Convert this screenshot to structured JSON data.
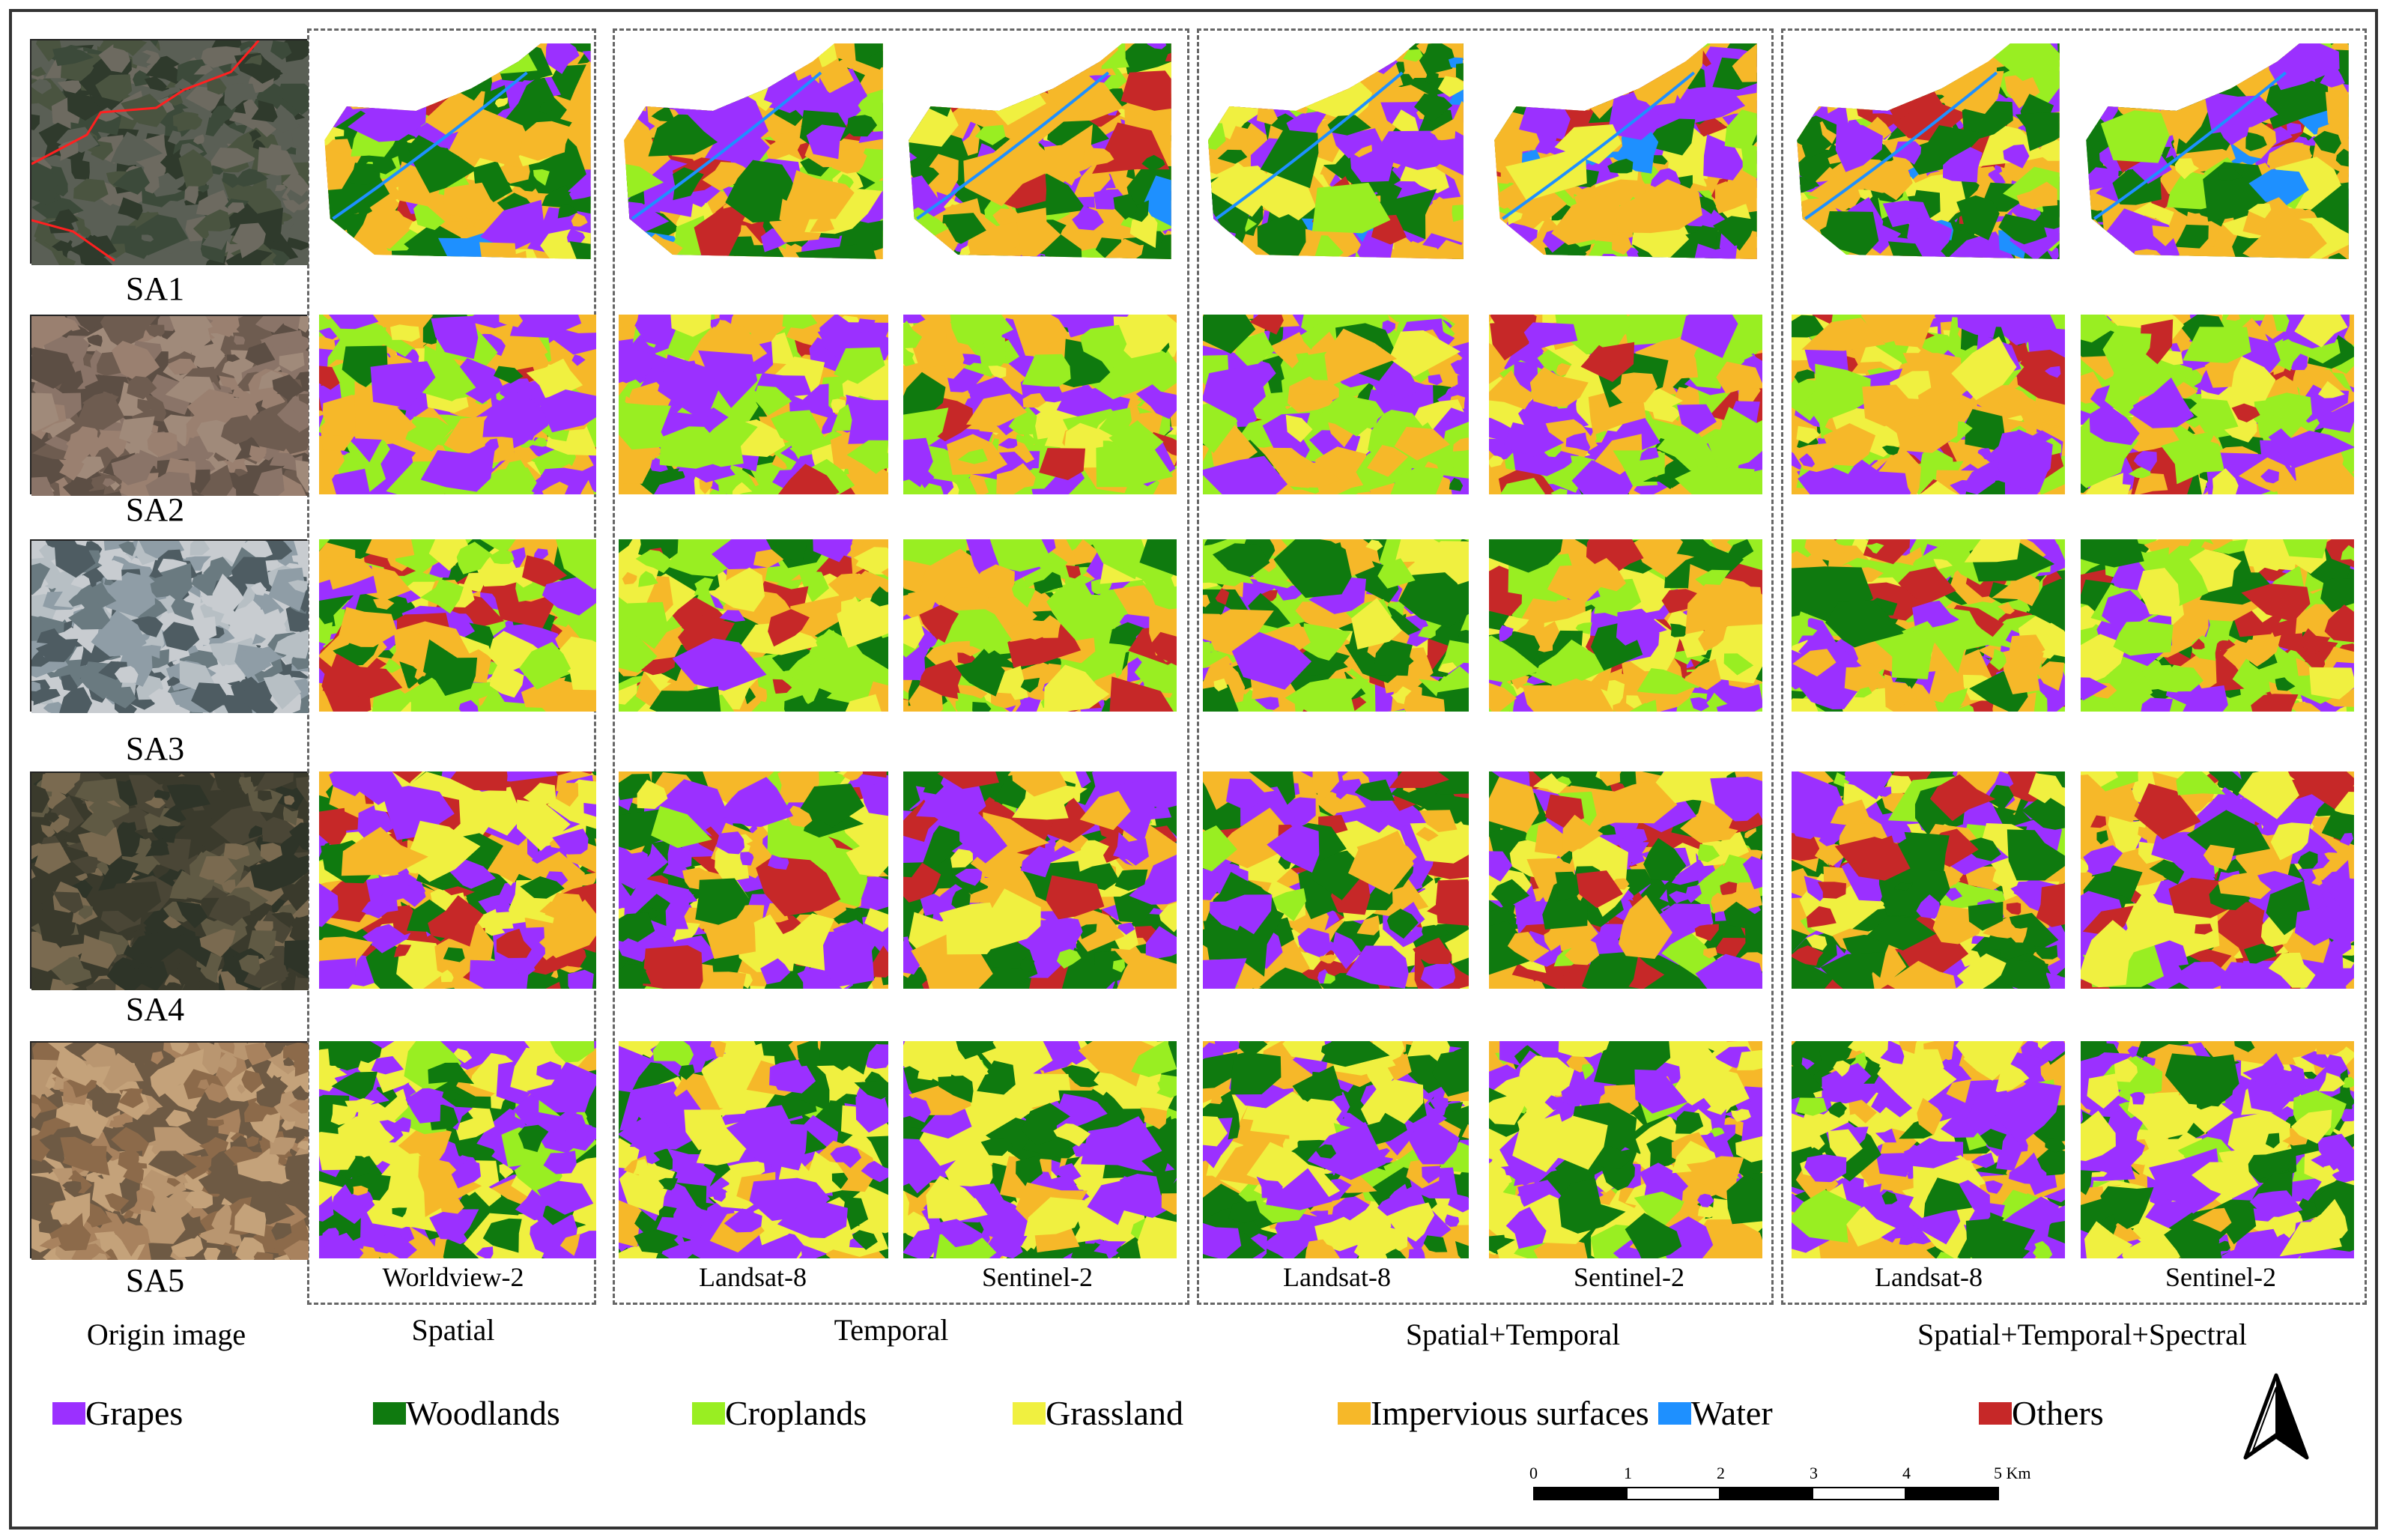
{
  "rows": [
    "SA1",
    "SA2",
    "SA3",
    "SA4",
    "SA5"
  ],
  "sensors": {
    "worldview": "Worldview-2",
    "landsat": "Landsat-8",
    "sentinel": "Sentinel-2"
  },
  "columns": {
    "origin": "Origin image",
    "spatial": "Spatial",
    "temporal": "Temporal",
    "spatial_temporal": "Spatial+Temporal",
    "spatial_temporal_spectral": "Spatial+Temporal+Spectral"
  },
  "legend": [
    {
      "label": "Grapes",
      "color": "#9b30ff"
    },
    {
      "label": "Woodlands",
      "color": "#0f7a0f"
    },
    {
      "label": "Croplands",
      "color": "#99ee22"
    },
    {
      "label": "Grassland",
      "color": "#f0f040"
    },
    {
      "label": "Impervious surfaces",
      "color": "#f6b829"
    },
    {
      "label": "Water",
      "color": "#1e90ff"
    },
    {
      "label": "Others",
      "color": "#c62828"
    }
  ],
  "scale_bar": {
    "ticks": [
      "0",
      "1",
      "2",
      "3",
      "4",
      "5 Km"
    ]
  },
  "north_arrow": "north-arrow"
}
